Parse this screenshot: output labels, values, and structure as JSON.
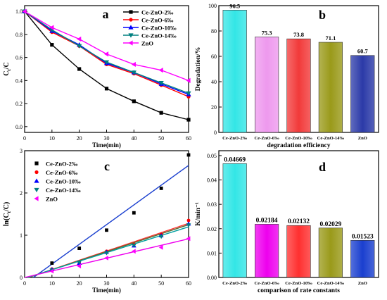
{
  "chart_data": [
    {
      "panel_label": "a",
      "type": "line",
      "xlabel": "Time(min)",
      "ylabel": "C_t/C",
      "xlim": [
        0,
        60
      ],
      "ylim": [
        -0.05,
        1.05
      ],
      "xticks": [
        0,
        10,
        20,
        30,
        40,
        50,
        60
      ],
      "yticks": [
        0.0,
        0.2,
        0.4,
        0.6,
        0.8,
        1.0
      ],
      "legend_position": "top-right",
      "x": [
        0,
        10,
        20,
        30,
        40,
        50,
        60
      ],
      "series": [
        {
          "name": "Ce-ZnO-2‰",
          "color": "#000000",
          "marker": "square",
          "values": [
            1.0,
            0.71,
            0.5,
            0.33,
            0.22,
            0.12,
            0.06
          ]
        },
        {
          "name": "Ce-ZnO-6‰",
          "color": "#ff0000",
          "marker": "circle",
          "values": [
            1.0,
            0.82,
            0.7,
            0.54,
            0.46,
            0.36,
            0.26
          ]
        },
        {
          "name": "Ce-ZnO-10‰",
          "color": "#0000ff",
          "marker": "triangle-up",
          "values": [
            1.0,
            0.83,
            0.71,
            0.55,
            0.47,
            0.37,
            0.28
          ]
        },
        {
          "name": "Ce-ZnO-14‰",
          "color": "#008080",
          "marker": "triangle-down",
          "values": [
            1.0,
            0.84,
            0.7,
            0.56,
            0.47,
            0.38,
            0.29
          ]
        },
        {
          "name": "ZnO",
          "color": "#ff00ff",
          "marker": "triangle-left",
          "values": [
            1.0,
            0.86,
            0.76,
            0.63,
            0.54,
            0.49,
            0.4
          ]
        }
      ]
    },
    {
      "panel_label": "b",
      "type": "bar",
      "xlabel": "degradation efficiency",
      "ylabel": "Degradation/%",
      "ylim": [
        0,
        100
      ],
      "yticks": [
        0,
        20,
        40,
        60,
        80,
        100
      ],
      "categories": [
        "Ce-ZnO-2‰",
        "Ce-ZnO-6‰",
        "Ce-ZnO-10‰",
        "Ce-ZnO-14‰",
        "ZnO"
      ],
      "values": [
        96.5,
        75.3,
        73.8,
        71.1,
        60.7
      ],
      "value_labels": [
        "96.5",
        "75.3",
        "73.8",
        "71.1",
        "60.7"
      ],
      "colors": [
        "#33e6e6",
        "#ee99ee",
        "#f23a3a",
        "#9a9a1a",
        "#2b3aa8"
      ]
    },
    {
      "panel_label": "c",
      "type": "scatter",
      "xlabel": "Time(min)",
      "ylabel": "ln(C_t/C)",
      "xlim": [
        0,
        60
      ],
      "ylim": [
        0,
        3.0
      ],
      "xticks": [
        0,
        10,
        20,
        30,
        40,
        50,
        60
      ],
      "yticks": [
        0,
        1,
        2,
        3
      ],
      "legend_position": "top-left",
      "x": [
        10,
        20,
        30,
        40,
        50,
        60
      ],
      "series": [
        {
          "name": "Ce-ZnO-2‰",
          "color": "#000000",
          "marker": "square",
          "values": [
            0.34,
            0.69,
            1.12,
            1.53,
            2.11,
            2.9
          ],
          "fit_slope": 0.04669,
          "fit_intercept": -0.15,
          "fit_color": "#1a3fcf"
        },
        {
          "name": "Ce-ZnO-6‰",
          "color": "#ff0000",
          "marker": "circle",
          "values": [
            0.2,
            0.36,
            0.62,
            0.78,
            1.02,
            1.35
          ],
          "fit_slope": 0.02184,
          "fit_intercept": -0.03,
          "fit_color": "#ff3030"
        },
        {
          "name": "Ce-ZnO-10‰",
          "color": "#0000ff",
          "marker": "triangle-up",
          "values": [
            0.19,
            0.34,
            0.6,
            0.75,
            0.99,
            1.27
          ],
          "fit_slope": 0.02132,
          "fit_intercept": -0.03,
          "fit_color": "#556b2f"
        },
        {
          "name": "Ce-ZnO-14‰",
          "color": "#008080",
          "marker": "triangle-down",
          "values": [
            0.17,
            0.36,
            0.58,
            0.76,
            0.97,
            1.24
          ],
          "fit_slope": 0.02029,
          "fit_intercept": -0.02,
          "fit_color": "#00a0a0"
        },
        {
          "name": "ZnO",
          "color": "#ff00ff",
          "marker": "triangle-left",
          "values": [
            0.15,
            0.27,
            0.46,
            0.62,
            0.71,
            0.92
          ],
          "fit_slope": 0.01523,
          "fit_intercept": 0.0,
          "fit_color": "#ee00ee"
        }
      ]
    },
    {
      "panel_label": "d",
      "type": "bar",
      "xlabel": "comparison of rate constants",
      "ylabel": "K/min⁻¹",
      "ylim": [
        0,
        0.052
      ],
      "yticks": [
        0.0,
        0.01,
        0.02,
        0.03,
        0.04,
        0.05
      ],
      "ytick_labels": [
        "0.00",
        "0.01",
        "0.02",
        "0.03",
        "0.04",
        "0.05"
      ],
      "categories": [
        "Ce-ZnO-2‰",
        "Ce-ZnO-6‰",
        "Ce-ZnO-10‰",
        "Ce-ZnO-14‰",
        "ZnO"
      ],
      "values": [
        0.04669,
        0.02184,
        0.02132,
        0.02029,
        0.01523
      ],
      "value_labels": [
        "0.04669",
        "0.02184",
        "0.02132",
        "0.02029",
        "0.01523"
      ],
      "colors": [
        "#33e6e6",
        "#ee00ee",
        "#ff3030",
        "#9a9a1a",
        "#1a3fcf"
      ]
    }
  ]
}
